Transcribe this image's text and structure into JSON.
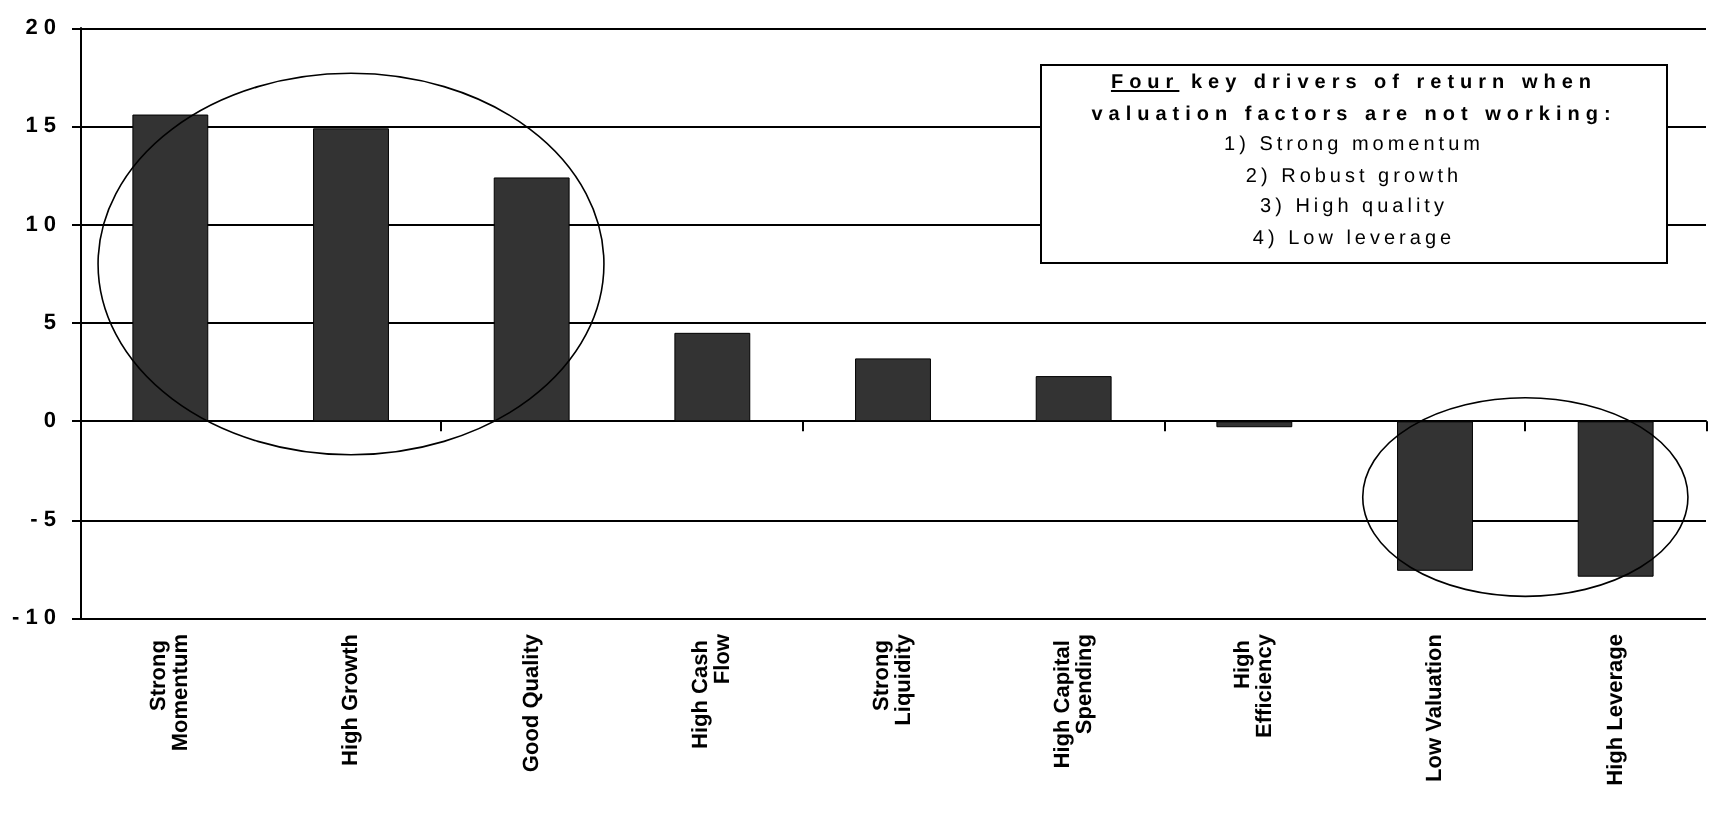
{
  "chart_data": {
    "type": "bar",
    "categories": [
      "Strong Momentum",
      "High Growth",
      "Good Quality",
      "High Cash Flow",
      "Strong Liquidity",
      "High Capital Spending",
      "High Efficiency",
      "Low Valuation",
      "High Leverage"
    ],
    "values": [
      15.6,
      14.9,
      12.4,
      4.5,
      3.2,
      2.3,
      -0.3,
      -7.6,
      -7.9
    ],
    "color": "#333333",
    "ylim": [
      -10,
      20
    ],
    "yticks": [
      -10,
      -5,
      0,
      5,
      10,
      15,
      20
    ],
    "grid": "y",
    "annotations": [
      "Four key drivers of return when valuation factors are not working:\n1) Strong momentum\n2) Robust growth\n3) High quality\n4) Low leverage"
    ]
  }
}
